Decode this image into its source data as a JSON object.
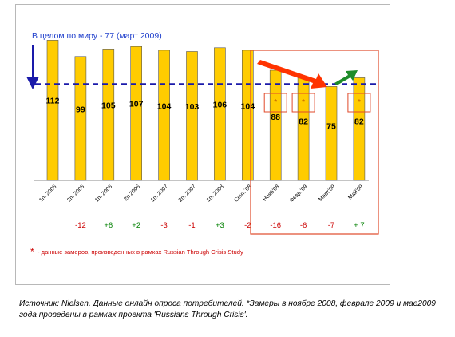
{
  "chart_data": {
    "type": "bar",
    "world_label": "В целом по миру  - 77 (март 2009)",
    "world_value": 77,
    "ylim": [
      0,
      125
    ],
    "categories": [
      "1п. 2005",
      "2п. 2005",
      "1п. 2006",
      "2п.2006",
      "1п. 2007",
      "2п. 2007",
      "1п. 2008",
      "Сент.`08",
      "Нояб'08",
      "Февр.'09",
      "Март'09",
      "Май'09"
    ],
    "values": [
      112,
      99,
      105,
      107,
      104,
      103,
      106,
      104,
      88,
      82,
      75,
      82
    ],
    "changes": [
      "",
      "-12",
      "+6",
      "+2",
      "-3",
      "-1",
      "+3",
      "-2",
      "-16",
      "-6",
      "-7",
      "+ 7"
    ],
    "star_marks": [
      false,
      false,
      false,
      false,
      false,
      false,
      false,
      false,
      true,
      true,
      false,
      true
    ],
    "star_symbol": "*",
    "footnote_symbol": "*",
    "footnote_text": "- данные замеров, произведенных в рамках  Russian Through Crisis Study",
    "colors": {
      "bar": "#FFCC00",
      "bar_stroke": "#555555",
      "world_line": "#1A1AAA",
      "label_blue": "#1F3FCC",
      "change_positive": "#008000",
      "change_negative": "#CC0000",
      "highlight": "#E04A2A",
      "arrow_down": "#FF3300",
      "arrow_up": "#1E8C2A"
    }
  },
  "source_text": "Источник: Nielsen. Данные онлайн опроса потребителей. *Замеры в ноябре 2008, феврале 2009 и мае2009 года проведены в рамках проекта 'Russians Through Crisis'."
}
